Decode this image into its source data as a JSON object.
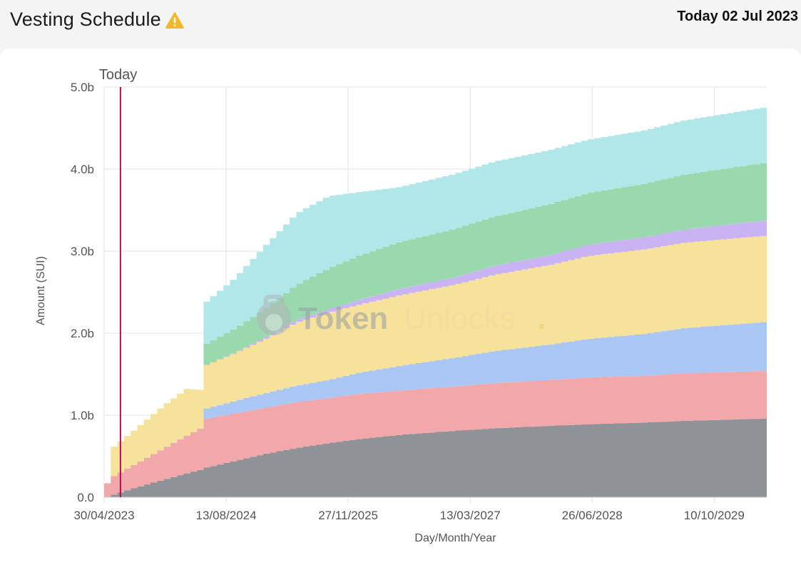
{
  "header": {
    "title": "Vesting Schedule",
    "warning_icon": "warning-triangle-icon",
    "today_label": "Today 02 Jul 2023"
  },
  "watermark": {
    "text_dark": "Token",
    "text_light": "Unlocks",
    "dot": "."
  },
  "chart_data": {
    "type": "area",
    "stacked": true,
    "step": true,
    "xlabel": "Day/Month/Year",
    "ylabel": "Amount (SUI)",
    "ylim": [
      0,
      5.0
    ],
    "y_unit": "billion",
    "x_range": [
      "2023-04-30",
      "2030-05-01"
    ],
    "x_ticks": [
      "30/04/2023",
      "13/08/2024",
      "27/11/2025",
      "13/03/2027",
      "26/06/2028",
      "10/10/2029"
    ],
    "y_ticks": [
      "0.0",
      "1.0b",
      "2.0b",
      "3.0b",
      "4.0b",
      "5.0b"
    ],
    "today_marker": {
      "label": "Today",
      "date": "2023-07-02",
      "color": "#a3174f"
    },
    "grid": true,
    "x": [
      "2023-04-30",
      "2023-05-03",
      "2023-06-01",
      "2023-09-01",
      "2023-12-01",
      "2024-03-01",
      "2024-05-01",
      "2024-05-03",
      "2024-09-01",
      "2025-01-01",
      "2025-05-01",
      "2025-09-01",
      "2026-01-01",
      "2026-06-01",
      "2027-01-01",
      "2027-06-01",
      "2028-01-01",
      "2028-06-01",
      "2029-01-01",
      "2029-06-01",
      "2030-01-01",
      "2030-05-01"
    ],
    "series": [
      {
        "color": "#8f9297",
        "values": [
          0,
          0.01,
          0.04,
          0.13,
          0.21,
          0.29,
          0.34,
          0.35,
          0.44,
          0.53,
          0.6,
          0.66,
          0.71,
          0.76,
          0.81,
          0.84,
          0.87,
          0.89,
          0.91,
          0.93,
          0.95,
          0.96
        ]
      },
      {
        "color": "#f2a7aa",
        "values": [
          0.17,
          0.2,
          0.23,
          0.3,
          0.38,
          0.46,
          0.51,
          0.6,
          0.58,
          0.56,
          0.56,
          0.55,
          0.55,
          0.54,
          0.54,
          0.55,
          0.56,
          0.57,
          0.57,
          0.58,
          0.58,
          0.58
        ]
      },
      {
        "color": "#a9c6f4",
        "values": [
          0,
          0,
          0,
          0,
          0,
          0,
          0,
          0.12,
          0.15,
          0.18,
          0.2,
          0.22,
          0.26,
          0.3,
          0.35,
          0.39,
          0.43,
          0.47,
          0.51,
          0.55,
          0.58,
          0.6
        ]
      },
      {
        "color": "#f6e29a",
        "values": [
          0,
          0.36,
          0.36,
          0.44,
          0.52,
          0.57,
          0.46,
          0.52,
          0.58,
          0.66,
          0.77,
          0.82,
          0.83,
          0.86,
          0.89,
          0.93,
          0.97,
          1.01,
          1.03,
          1.04,
          1.05,
          1.05
        ]
      },
      {
        "color": "#c9b3f2",
        "values": [
          0,
          0,
          0,
          0,
          0,
          0,
          0,
          0.005,
          0.01,
          0.02,
          0.03,
          0.04,
          0.06,
          0.08,
          0.09,
          0.11,
          0.12,
          0.14,
          0.15,
          0.16,
          0.18,
          0.19
        ]
      },
      {
        "color": "#99d9ad",
        "values": [
          0,
          0,
          0,
          0,
          0,
          0,
          0,
          0.25,
          0.29,
          0.35,
          0.43,
          0.5,
          0.54,
          0.57,
          0.59,
          0.6,
          0.62,
          0.63,
          0.65,
          0.67,
          0.69,
          0.7
        ]
      },
      {
        "color": "#b1e7e9",
        "values": [
          0,
          0,
          0,
          0,
          0,
          0,
          0,
          0.5,
          0.61,
          0.77,
          0.87,
          0.88,
          0.77,
          0.67,
          0.67,
          0.67,
          0.66,
          0.65,
          0.65,
          0.66,
          0.67,
          0.68
        ]
      }
    ]
  }
}
